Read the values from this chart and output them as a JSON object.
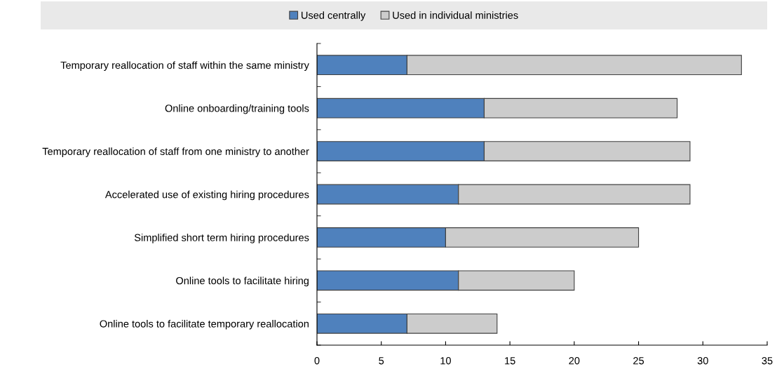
{
  "chart_data": {
    "type": "bar",
    "orientation": "horizontal",
    "stacked": true,
    "categories": [
      "Temporary reallocation of staff within the same ministry",
      "Online onboarding/training tools",
      "Temporary reallocation of staff from one ministry to another",
      "Accelerated use of existing hiring procedures",
      "Simplified short term hiring procedures",
      "Online tools to facilitate hiring",
      "Online tools to facilitate temporary reallocation"
    ],
    "series": [
      {
        "name": "Used centrally",
        "color": "#4f81bd",
        "values": [
          7,
          13,
          13,
          11,
          10,
          11,
          7
        ]
      },
      {
        "name": "Used in individual ministries",
        "color": "#cccccc",
        "values": [
          26,
          15,
          16,
          18,
          15,
          9,
          7
        ]
      }
    ],
    "xlim": [
      0,
      35
    ],
    "xticks": [
      0,
      5,
      10,
      15,
      20,
      25,
      30,
      35
    ],
    "grid": false,
    "legend": "top"
  }
}
